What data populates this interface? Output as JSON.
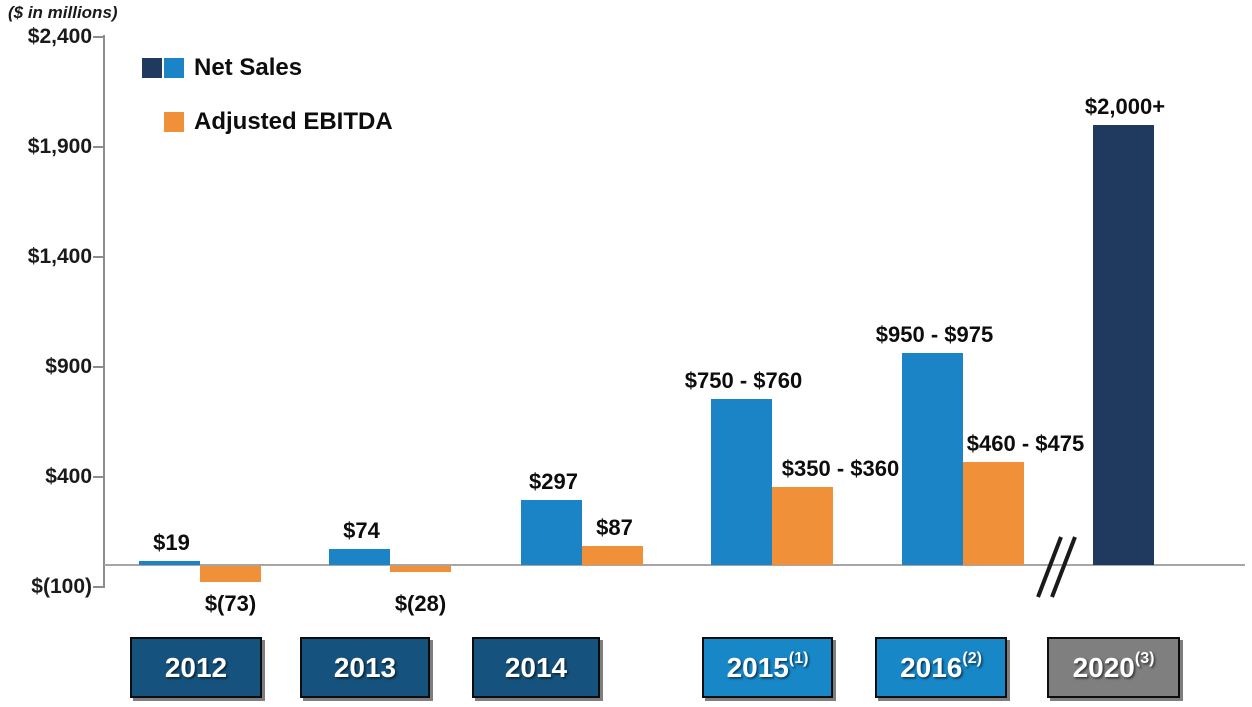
{
  "unit_note": "($ in millions)",
  "colors": {
    "net_sales_blue": "#1b84c6",
    "net_sales_navy": "#1f3a5e",
    "ebitda_orange": "#f0913a",
    "year_box_navy": "#15527d",
    "year_box_blue": "#1787c8",
    "year_box_gray": "#7f7f7f",
    "axis_gray": "#a6a6a6",
    "text_black": "#0d0d0d"
  },
  "chart_data": {
    "type": "bar",
    "title": "",
    "unit_label": "($ in millions)",
    "categories": [
      {
        "label": "2012",
        "sup": ""
      },
      {
        "label": "2013",
        "sup": ""
      },
      {
        "label": "2014",
        "sup": ""
      },
      {
        "label": "2015",
        "sup": "(1)"
      },
      {
        "label": "2016",
        "sup": "(2)"
      },
      {
        "label": "2020",
        "sup": "(3)"
      }
    ],
    "category_box_color_keys": [
      "year_box_navy",
      "year_box_navy",
      "year_box_navy",
      "year_box_blue",
      "year_box_blue",
      "year_box_gray"
    ],
    "y_axis": {
      "tick_labels": [
        "$2,400",
        "$1,900",
        "$1,400",
        "$900",
        "$400",
        "$(100)"
      ],
      "tick_values": [
        2400,
        1900,
        1400,
        900,
        400,
        -100
      ],
      "range": [
        -100,
        2400
      ],
      "grid": false
    },
    "legend_position": "top-left",
    "axis_break": {
      "between": [
        "2016",
        "2020"
      ],
      "symbol": "//"
    },
    "series": [
      {
        "name": "Net Sales",
        "color_keys": [
          "net_sales_blue",
          "net_sales_blue",
          "net_sales_blue",
          "net_sales_blue",
          "net_sales_blue",
          "net_sales_navy"
        ],
        "legend_swatch_color_keys": [
          "net_sales_navy",
          "net_sales_blue"
        ],
        "values": [
          19,
          74,
          297,
          755,
          963,
          2000
        ],
        "labels": [
          "$19",
          "$74",
          "$297",
          "$750 - $760",
          "$950 - $975",
          "$2,000+"
        ]
      },
      {
        "name": "Adjusted EBITDA",
        "color_keys": [
          "ebitda_orange",
          "ebitda_orange",
          "ebitda_orange",
          "ebitda_orange",
          "ebitda_orange",
          "ebitda_orange"
        ],
        "legend_swatch_color_keys": [
          "ebitda_orange"
        ],
        "values": [
          -73,
          -28,
          87,
          355,
          467,
          null
        ],
        "labels": [
          "$(73)",
          "$(28)",
          "$87",
          "$350 - $360",
          "$460 - $475",
          ""
        ]
      }
    ]
  }
}
